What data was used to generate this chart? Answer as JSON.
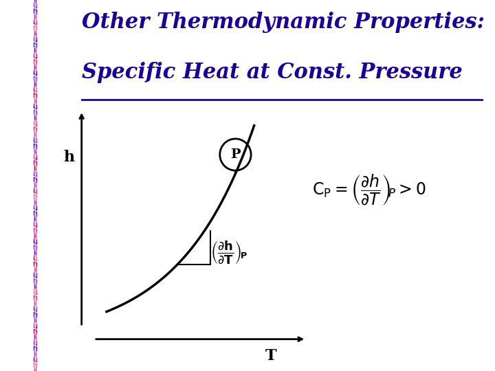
{
  "title_line1": "Other Thermodynamic Properties:",
  "title_line2": "Specific Heat at Const. Pressure",
  "title_color": "#1a0099",
  "title_fontsize": 22,
  "bg_color": "#ffffff",
  "plot_bg_color": "#ff99ff",
  "curve_color": "#000000",
  "axis_color": "#000000",
  "h_label": "h",
  "T_label": "T",
  "P_label": "P",
  "colors_cycle": [
    "#cc0066",
    "#6600cc",
    "#ff6699",
    "#9933ff",
    "#cc3399",
    "#7700bb",
    "#ff3377",
    "#8844dd",
    "#dd0088",
    "#5522cc"
  ],
  "n_fans": 22,
  "n_wedges": 8
}
